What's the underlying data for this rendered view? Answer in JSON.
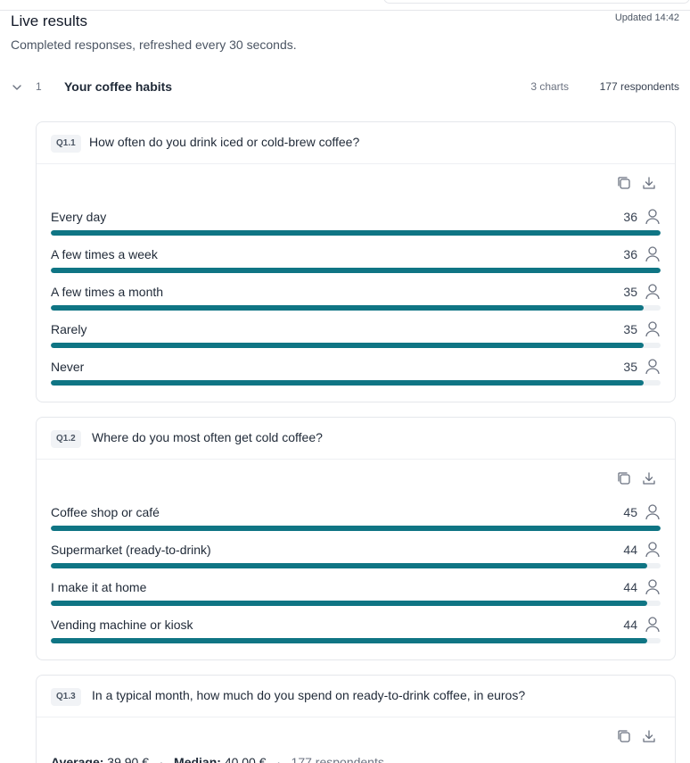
{
  "header": {
    "title": "Live results",
    "updated": "Updated 14:42",
    "subtitle": "Completed responses, refreshed every 30 seconds."
  },
  "section": {
    "number": "1",
    "title": "Your coffee habits",
    "charts": "3 charts",
    "respondents": "177 respondents"
  },
  "questions": [
    {
      "tag": "Q1.1",
      "text": "How often do you drink iced or cold-brew coffee?",
      "options": [
        {
          "label": "Every day",
          "count": "36",
          "fraction": 1.0
        },
        {
          "label": "A few times a week",
          "count": "36",
          "fraction": 1.0
        },
        {
          "label": "A few times a month",
          "count": "35",
          "fraction": 0.972
        },
        {
          "label": "Rarely",
          "count": "35",
          "fraction": 0.972
        },
        {
          "label": "Never",
          "count": "35",
          "fraction": 0.972
        }
      ]
    },
    {
      "tag": "Q1.2",
      "text": "Where do you most often get cold coffee?",
      "options": [
        {
          "label": "Coffee shop or café",
          "count": "45",
          "fraction": 1.0
        },
        {
          "label": "Supermarket (ready-to-drink)",
          "count": "44",
          "fraction": 0.978
        },
        {
          "label": "I make it at home",
          "count": "44",
          "fraction": 0.978
        },
        {
          "label": "Vending machine or kiosk",
          "count": "44",
          "fraction": 0.978
        }
      ]
    },
    {
      "tag": "Q1.3",
      "text": "In a typical month, how much do you spend on ready-to-drink coffee, in euros?",
      "stats": {
        "average_label": "Average:",
        "average_value": "39.90 €",
        "median_label": "Median:",
        "median_value": "40.00 €",
        "respondents": "177 respondents"
      }
    }
  ],
  "colors": {
    "bar": "#0f7584",
    "track": "#eef1f4"
  },
  "icons": {
    "collapse": "chevron-down-icon",
    "copy": "copy-icon",
    "download": "download-icon",
    "respondent": "user-icon"
  }
}
